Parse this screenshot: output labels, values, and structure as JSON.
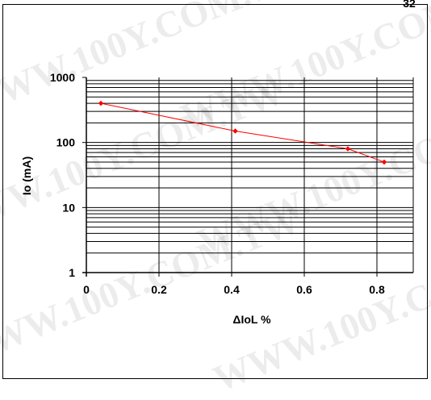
{
  "watermark": "WWW.100Y.COM.TW",
  "corner_fragment": "32",
  "chart_data": {
    "type": "line",
    "xlabel": "ΔIoL %",
    "ylabel": "Io (mA)",
    "xlim": [
      0,
      0.9
    ],
    "ylim": [
      1,
      1000
    ],
    "y_scale": "log",
    "x_ticks": [
      0,
      0.2,
      0.4,
      0.6,
      0.8
    ],
    "x_tick_labels": [
      "0",
      "0.2",
      "0.4",
      "0.6",
      "0.8"
    ],
    "y_ticks": [
      1,
      10,
      100,
      1000
    ],
    "y_tick_labels": [
      "1",
      "10",
      "100",
      "1000"
    ],
    "grid": true,
    "series": [
      {
        "color": "#ff0000",
        "x": [
          0.04,
          0.41,
          0.72,
          0.82
        ],
        "y": [
          400,
          150,
          80,
          50
        ]
      }
    ]
  }
}
